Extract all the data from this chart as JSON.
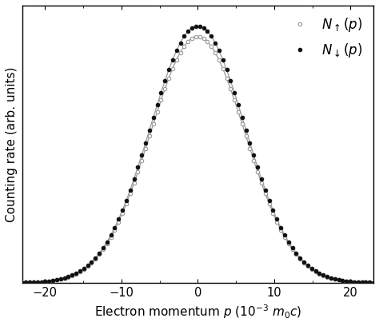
{
  "xlabel": "Electron momentum $p$ (10$^{-3}$ $m_0c$)",
  "ylabel": "Counting rate (arb. units)",
  "xlim": [
    -23,
    23
  ],
  "ylim_min": 0,
  "sigma_up": 6.2,
  "sigma_down": 6.2,
  "amplitude_up": 0.96,
  "amplitude_down": 1.0,
  "xticks": [
    -20,
    -10,
    0,
    10,
    20
  ],
  "color_line": "#999999",
  "color_up_marker": "#999999",
  "color_down_marker": "#111111",
  "label_up": "$N_{\\uparrow}(p)$",
  "label_down": "$N_{\\downarrow}(p)$",
  "n_points": 92,
  "marker_size": 3.2,
  "background_color": "#ffffff",
  "spine_color": "#000000",
  "legend_fontsize": 12,
  "axis_fontsize": 11,
  "tick_fontsize": 10.5
}
